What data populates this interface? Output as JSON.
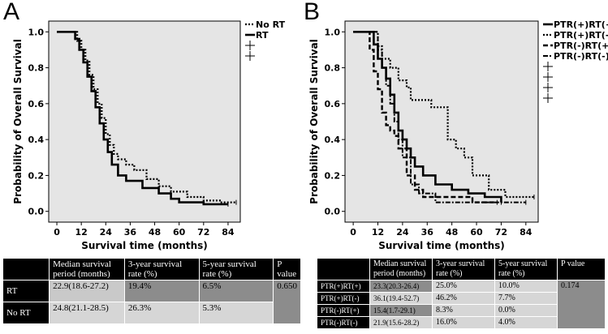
{
  "panels": {
    "A": {
      "letter": "A"
    },
    "B": {
      "letter": "B"
    }
  },
  "chart_data": [
    {
      "type": "line",
      "panel": "A",
      "title": "",
      "xlabel": "Survival time (months)",
      "ylabel": "Probability of Overall Survival",
      "xlim": [
        -4,
        90
      ],
      "ylim": [
        -0.06,
        1.06
      ],
      "xticks": [
        0,
        12,
        24,
        36,
        48,
        60,
        72,
        84
      ],
      "yticks": [
        0.0,
        0.2,
        0.4,
        0.6,
        0.8,
        1.0
      ],
      "xtick_labels": [
        "0",
        "12",
        "24",
        "36",
        "48",
        "60",
        "72",
        "84"
      ],
      "ytick_labels": [
        "0.0",
        "0.2",
        "0.4",
        "0.6",
        "0.8",
        "1.0"
      ],
      "legend_position": "right",
      "series": [
        {
          "name": "No RT",
          "style": "dotted",
          "x": [
            0,
            8,
            10,
            12,
            14,
            16,
            18,
            20,
            22,
            24,
            26,
            28,
            30,
            34,
            38,
            44,
            50,
            56,
            64,
            72,
            80,
            88
          ],
          "y": [
            1.0,
            1.0,
            0.95,
            0.9,
            0.84,
            0.76,
            0.68,
            0.6,
            0.52,
            0.43,
            0.37,
            0.32,
            0.29,
            0.26,
            0.23,
            0.18,
            0.14,
            0.11,
            0.08,
            0.06,
            0.05,
            0.05
          ]
        },
        {
          "name": "RT",
          "style": "solid",
          "x": [
            0,
            7,
            9,
            11,
            13,
            15,
            17,
            19,
            21,
            23,
            25,
            27,
            30,
            34,
            42,
            50,
            56,
            60,
            72,
            84
          ],
          "y": [
            1.0,
            1.0,
            0.96,
            0.9,
            0.83,
            0.75,
            0.67,
            0.58,
            0.49,
            0.4,
            0.33,
            0.26,
            0.2,
            0.17,
            0.13,
            0.1,
            0.07,
            0.05,
            0.04,
            0.04
          ]
        }
      ]
    },
    {
      "type": "line",
      "panel": "B",
      "title": "",
      "xlabel": "Survival time (months)",
      "ylabel": "Probability of Overall Survival",
      "xlim": [
        -4,
        90
      ],
      "ylim": [
        -0.06,
        1.06
      ],
      "xticks": [
        0,
        12,
        24,
        36,
        48,
        60,
        72,
        84
      ],
      "yticks": [
        0.0,
        0.2,
        0.4,
        0.6,
        0.8,
        1.0
      ],
      "xtick_labels": [
        "0",
        "12",
        "24",
        "36",
        "48",
        "60",
        "72",
        "84"
      ],
      "ytick_labels": [
        "0.0",
        "0.2",
        "0.4",
        "0.6",
        "0.8",
        "1.0"
      ],
      "legend_position": "right",
      "series": [
        {
          "name": "PTR(+)RT(+)",
          "style": "solid",
          "x": [
            0,
            8,
            10,
            12,
            14,
            16,
            18,
            20,
            22,
            24,
            26,
            28,
            30,
            34,
            40,
            48,
            56,
            64,
            72
          ],
          "y": [
            1.0,
            1.0,
            0.93,
            0.85,
            0.8,
            0.74,
            0.65,
            0.55,
            0.45,
            0.4,
            0.35,
            0.3,
            0.25,
            0.2,
            0.15,
            0.12,
            0.1,
            0.08,
            0.05
          ]
        },
        {
          "name": "PTR(+)RT(-)",
          "style": "dotted",
          "x": [
            0,
            10,
            12,
            14,
            18,
            22,
            26,
            28,
            32,
            38,
            46,
            50,
            54,
            58,
            66,
            74,
            88
          ],
          "y": [
            1.0,
            1.0,
            0.92,
            0.85,
            0.8,
            0.73,
            0.69,
            0.62,
            0.62,
            0.58,
            0.4,
            0.35,
            0.3,
            0.2,
            0.12,
            0.08,
            0.08
          ]
        },
        {
          "name": "PTR(-)RT(+)",
          "style": "dashed",
          "x": [
            0,
            6,
            8,
            10,
            12,
            14,
            16,
            18,
            20,
            22,
            26,
            30,
            34,
            44,
            58,
            70
          ],
          "y": [
            1.0,
            1.0,
            0.9,
            0.78,
            0.68,
            0.55,
            0.48,
            0.45,
            0.42,
            0.35,
            0.2,
            0.12,
            0.08,
            0.08,
            0.05,
            0.05
          ]
        },
        {
          "name": "PTR(-)RT(-)",
          "style": "dashdot",
          "x": [
            0,
            10,
            12,
            14,
            16,
            18,
            20,
            22,
            24,
            28,
            32,
            40,
            50,
            64,
            84
          ],
          "y": [
            1.0,
            1.0,
            0.9,
            0.8,
            0.7,
            0.6,
            0.5,
            0.4,
            0.3,
            0.15,
            0.1,
            0.05,
            0.05,
            0.05,
            0.05
          ]
        }
      ]
    }
  ],
  "table_a": {
    "headers": [
      "Median survival period (months)",
      "3-year survival rate (%)",
      "5-year survival rate (%)",
      "P value"
    ],
    "rows": [
      {
        "label": "RT",
        "median": "22.9(18.6-27.2)",
        "y3": "19.4%",
        "y5": "6.5%"
      },
      {
        "label": "No RT",
        "median": "24.8(21.1-28.5)",
        "y3": "26.3%",
        "y5": "5.3%"
      }
    ],
    "p_value": "0.650"
  },
  "table_b": {
    "headers": [
      "Median survival period (months)",
      "3-year survival rate (%)",
      "5-year survival rate (%)",
      "P value"
    ],
    "rows": [
      {
        "label": "PTR(+)RT(+)",
        "median": "23.3(20.3-26.4)",
        "y3": "25.0%",
        "y5": "10.0%"
      },
      {
        "label": "PTR(+)RT(-)",
        "median": "36.1(19.4-52.7)",
        "y3": "46.2%",
        "y5": "7.7%"
      },
      {
        "label": "PTR(-)RT(+)",
        "median": "15.4(1.7-29.1)",
        "y3": "8.3%",
        "y5": "0.0%"
      },
      {
        "label": "PTR(-)RT(-)",
        "median": "21.9(15.6-28.2)",
        "y3": "16.0%",
        "y5": "4.0%"
      }
    ],
    "p_value": "0.174"
  }
}
